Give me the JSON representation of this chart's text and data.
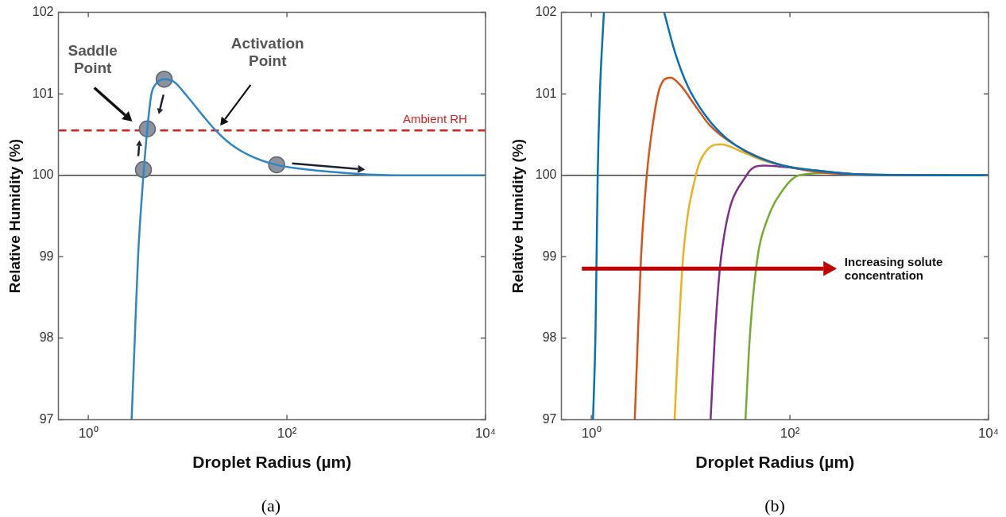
{
  "chart_data": [
    {
      "type": "line",
      "xlabel": "Droplet Radius (µm)",
      "ylabel": "Relative Humidity (%)",
      "log": "x",
      "xlim": [
        0.5,
        10000
      ],
      "xticks": [
        {
          "value": 1,
          "label": "10⁰"
        },
        {
          "value": 100,
          "label": "10²"
        },
        {
          "value": 10000,
          "label": "10⁴"
        }
      ],
      "ylim": [
        97,
        102
      ],
      "yticks": [
        97,
        98,
        99,
        100,
        101,
        102
      ],
      "series": [
        {
          "color": "#2f86c6",
          "x": [
            2.73,
            2.94,
            3.17,
            3.59,
            3.93,
            4.32,
            4.65,
            5.81,
            7.25,
            9.75,
            14.1,
            18.9,
            27.4,
            42.7,
            77.2,
            162,
            490,
            1485,
            10000
          ],
          "values": [
            97,
            98,
            99,
            100,
            100.57,
            101,
            101.1,
            101.18,
            101.15,
            100.98,
            100.74,
            100.56,
            100.38,
            100.24,
            100.13,
            100.07,
            100.02,
            100,
            100
          ]
        },
        {
          "type": "scatter",
          "marker": "circle",
          "color": "#8c939e",
          "x": [
            3.59,
            3.93,
            5.81,
            78.9
          ],
          "values": [
            100.07,
            100.57,
            101.18,
            100.13
          ]
        }
      ],
      "ref_lines": [
        {
          "axis": "y",
          "value": 100,
          "color": "#404040"
        },
        {
          "axis": "y",
          "value": 100.55,
          "label": "Ambient RH",
          "color": "#d42020",
          "line_style": "dashed"
        }
      ],
      "annotations": [
        "Saddle\nPoint",
        "Activation\nPoint",
        "(a)"
      ]
    },
    {
      "type": "line",
      "xlabel": "Droplet Radius (µm)",
      "ylabel": "Relative Humidity (%)",
      "log": "x",
      "xlim": [
        0.5,
        10000
      ],
      "xticks": [
        {
          "value": 1,
          "label": "10⁰"
        },
        {
          "value": 100,
          "label": "10²"
        },
        {
          "value": 10000,
          "label": "10⁴"
        }
      ],
      "ylim": [
        97,
        102
      ],
      "yticks": [
        97,
        98,
        99,
        100,
        101,
        102
      ],
      "series": [
        {
          "color": "#0072bd",
          "x": [
            1.04,
            1.1,
            1.13,
            1.16,
            1.22,
            1.34,
            null,
            5.42,
            7.0,
            9.4,
            13.6,
            19.6,
            28.3,
            44,
            85,
            177,
            533,
            10000
          ],
          "values": [
            97,
            98,
            99,
            100,
            101,
            102,
            null,
            102,
            101.5,
            101.09,
            100.76,
            100.53,
            100.37,
            100.24,
            100.12,
            100.06,
            100.01,
            100
          ]
        },
        {
          "color": "#d95319",
          "x": [
            2.74,
            2.94,
            3.17,
            3.62,
            4.19,
            4.85,
            6.27,
            8.1,
            10.9,
            15.7,
            28.3,
            85,
            533,
            10000
          ],
          "values": [
            97,
            98,
            99,
            100,
            100.65,
            101.06,
            101.2,
            101.09,
            100.87,
            100.61,
            100.37,
            100.12,
            100.01,
            100
          ]
        },
        {
          "color": "#edb120",
          "x": [
            6.9,
            7.54,
            8.41,
            11.3,
            14.6,
            20.3,
            32.7,
            54.7,
            85,
            177
          ],
          "values": [
            97,
            98,
            99,
            100,
            100.31,
            100.38,
            100.29,
            100.18,
            100.12,
            100.06
          ]
        },
        {
          "color": "#7e2f8e",
          "x": [
            15.9,
            17.5,
            20.3,
            36.6,
            54.7,
            91.6,
            177,
            533,
            10000
          ],
          "values": [
            97,
            98,
            99,
            100,
            100.12,
            100.1,
            100.06,
            100.01,
            100
          ]
        },
        {
          "color": "#77ac30",
          "x": [
            35.7,
            39.4,
            47.3,
            58.9,
            85,
            123,
            256,
            533,
            10000
          ],
          "values": [
            97,
            98,
            99,
            99.45,
            99.82,
            100,
            100.03,
            100.01,
            100
          ]
        }
      ],
      "ref_lines": [
        {
          "axis": "y",
          "value": 100,
          "color": "#404040"
        }
      ],
      "annotations": [
        "Increasing solute\nconcentration",
        "(b)"
      ]
    }
  ]
}
